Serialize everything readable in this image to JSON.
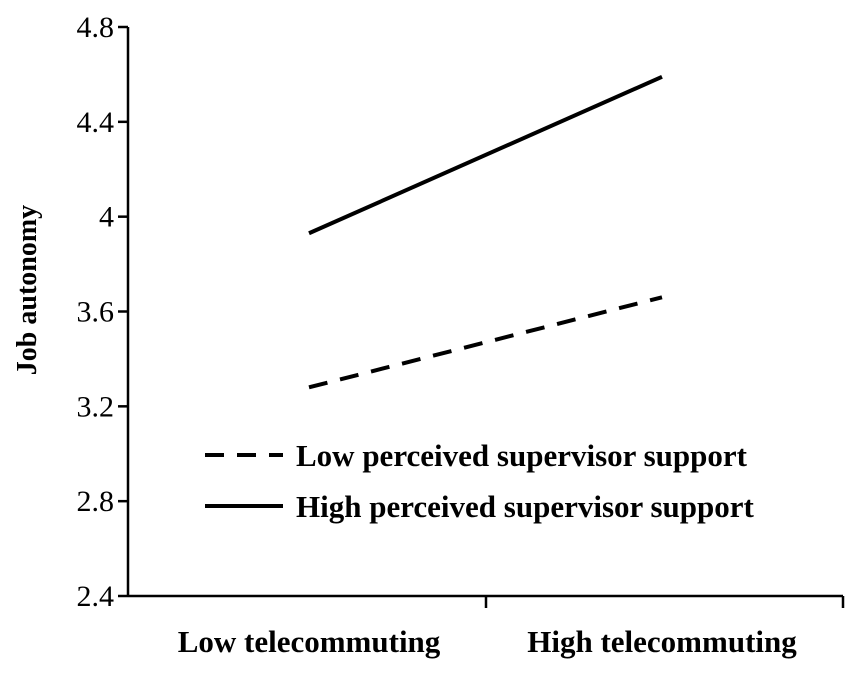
{
  "chart_data": {
    "type": "line",
    "title": "",
    "xlabel": "",
    "ylabel": "Job autonomy",
    "ylim": [
      2.4,
      4.8
    ],
    "yticks": [
      "2.4",
      "2.8",
      "3.2",
      "3.6",
      "4",
      "4.4",
      "4.8"
    ],
    "categories": [
      "Low telecommuting",
      "High telecommuting"
    ],
    "grid": false,
    "legend_position": "bottom-right",
    "series": [
      {
        "name": "Low perceived supervisor support",
        "values": [
          3.28,
          3.66
        ],
        "style": "dashed",
        "color": "#000000"
      },
      {
        "name": "High perceived supervisor support",
        "values": [
          3.93,
          4.59
        ],
        "style": "solid",
        "color": "#000000"
      }
    ]
  }
}
